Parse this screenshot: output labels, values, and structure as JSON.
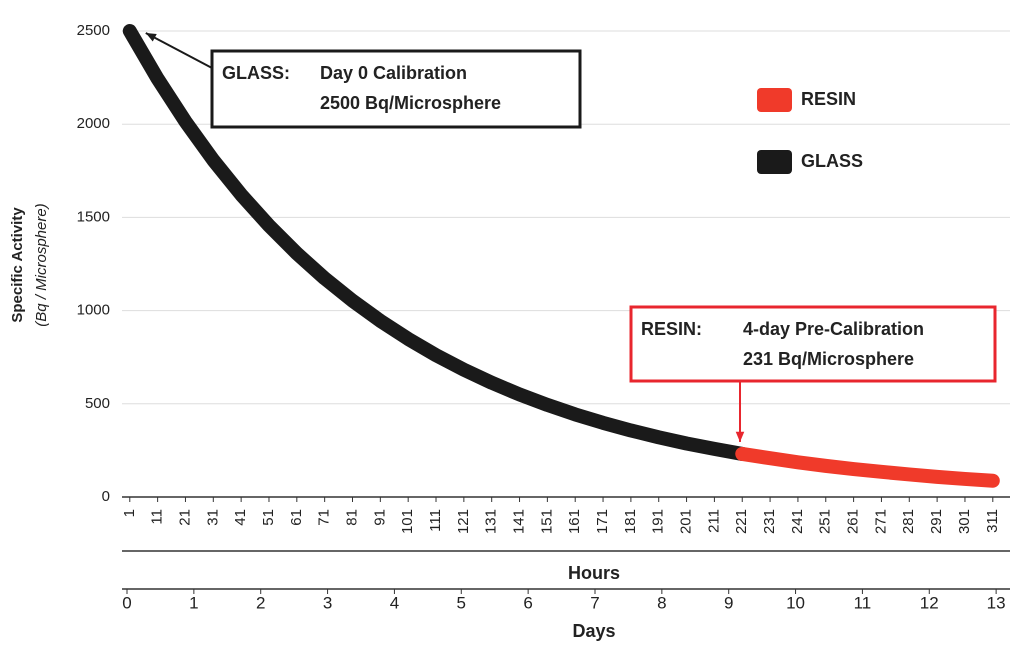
{
  "chart_data": {
    "type": "line",
    "ylabel": "Specific Activity",
    "ylabel_sub": "(Bq / Microsphere)",
    "xlabel": "Hours",
    "x2label": "Days",
    "xlim": [
      0,
      317
    ],
    "xticks": [
      1,
      11,
      21,
      31,
      41,
      51,
      61,
      71,
      81,
      91,
      101,
      111,
      121,
      131,
      141,
      151,
      161,
      171,
      181,
      191,
      201,
      211,
      221,
      231,
      241,
      251,
      261,
      271,
      281,
      291,
      301,
      311
    ],
    "x2lim": [
      0,
      13.2
    ],
    "x2ticks": [
      0,
      1,
      2,
      3,
      4,
      5,
      6,
      7,
      8,
      9,
      10,
      11,
      12,
      13
    ],
    "ylim": [
      0,
      2500
    ],
    "yticks": [
      0,
      500,
      1000,
      1500,
      2000,
      2500
    ],
    "grid": true,
    "legend": "upper right",
    "series": [
      {
        "name": "RESIN",
        "color": "#f03a2a",
        "x": [
          221,
          231,
          241,
          251,
          261,
          271,
          281,
          291,
          301,
          311
        ],
        "values": [
          231,
          208,
          186,
          167,
          150,
          135,
          121,
          108,
          97,
          87
        ]
      },
      {
        "name": "GLASS",
        "color": "#1a1a1a",
        "x": [
          1,
          11,
          21,
          31,
          41,
          51,
          61,
          71,
          81,
          91,
          101,
          111,
          121,
          131,
          141,
          151,
          161,
          171,
          181,
          191,
          201,
          211,
          221
        ],
        "values": [
          2500,
          2244,
          2014,
          1807,
          1622,
          1456,
          1307,
          1173,
          1053,
          945,
          848,
          761,
          683,
          613,
          550,
          494,
          443,
          398,
          357,
          320,
          287,
          258,
          231
        ]
      }
    ],
    "annotations": [
      {
        "label": "GLASS:",
        "lines": [
          "Day 0 Calibration",
          "2500 Bq/Microsphere"
        ],
        "color": "#1a1a1a"
      },
      {
        "label": "RESIN:",
        "lines": [
          "4-day Pre-Calibration",
          "231 Bq/Microsphere"
        ],
        "color": "#e8262e"
      }
    ]
  }
}
